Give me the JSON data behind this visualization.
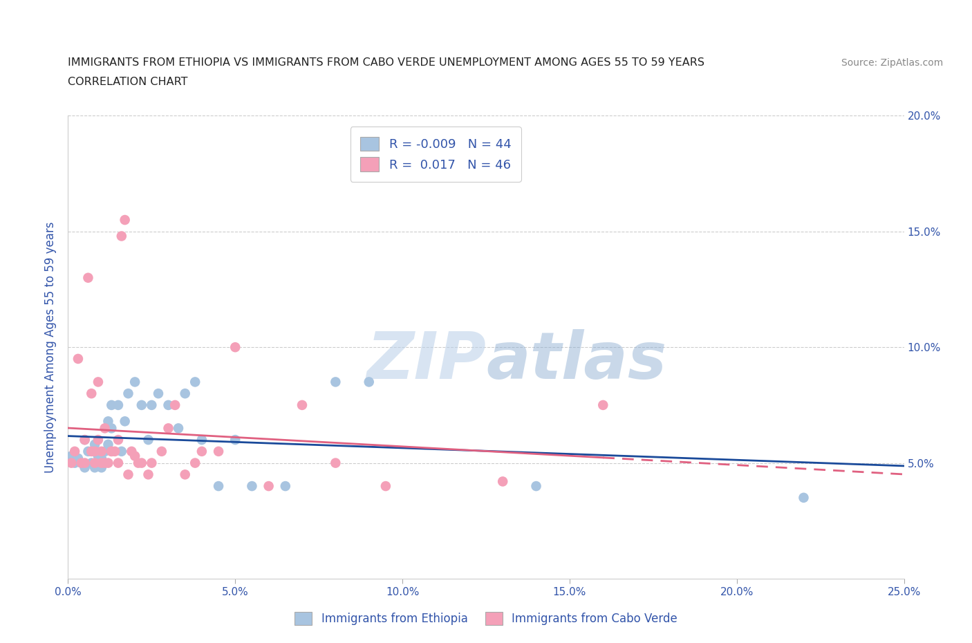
{
  "title_line1": "IMMIGRANTS FROM ETHIOPIA VS IMMIGRANTS FROM CABO VERDE UNEMPLOYMENT AMONG AGES 55 TO 59 YEARS",
  "title_line2": "CORRELATION CHART",
  "source_text": "Source: ZipAtlas.com",
  "ylabel": "Unemployment Among Ages 55 to 59 years",
  "xlim": [
    0.0,
    0.25
  ],
  "ylim": [
    0.0,
    0.2
  ],
  "xticks": [
    0.0,
    0.05,
    0.1,
    0.15,
    0.2,
    0.25
  ],
  "yticks": [
    0.0,
    0.05,
    0.1,
    0.15,
    0.2
  ],
  "watermark_zip": "ZIP",
  "watermark_atlas": "atlas",
  "legend_ethiopia_r": "-0.009",
  "legend_ethiopia_n": "44",
  "legend_caboverde_r": "0.017",
  "legend_caboverde_n": "46",
  "color_ethiopia": "#a8c4e0",
  "color_caboverde": "#f4a0b8",
  "line_color_ethiopia": "#1a4a9a",
  "line_color_caboverde": "#e06080",
  "grid_color": "#cccccc",
  "title_color": "#222222",
  "axis_label_color": "#3355aa",
  "tick_label_color": "#3355aa",
  "ethiopia_x": [
    0.001,
    0.002,
    0.003,
    0.004,
    0.005,
    0.005,
    0.006,
    0.007,
    0.007,
    0.008,
    0.008,
    0.009,
    0.009,
    0.01,
    0.01,
    0.01,
    0.011,
    0.011,
    0.012,
    0.012,
    0.013,
    0.013,
    0.015,
    0.016,
    0.017,
    0.018,
    0.02,
    0.022,
    0.024,
    0.025,
    0.027,
    0.03,
    0.033,
    0.035,
    0.038,
    0.04,
    0.045,
    0.05,
    0.055,
    0.065,
    0.08,
    0.09,
    0.14,
    0.22
  ],
  "ethiopia_y": [
    0.053,
    0.05,
    0.052,
    0.05,
    0.06,
    0.048,
    0.055,
    0.05,
    0.055,
    0.048,
    0.058,
    0.05,
    0.053,
    0.052,
    0.05,
    0.048,
    0.055,
    0.05,
    0.058,
    0.068,
    0.065,
    0.075,
    0.075,
    0.055,
    0.068,
    0.08,
    0.085,
    0.075,
    0.06,
    0.075,
    0.08,
    0.075,
    0.065,
    0.08,
    0.085,
    0.06,
    0.04,
    0.06,
    0.04,
    0.04,
    0.085,
    0.085,
    0.04,
    0.035
  ],
  "caboverde_x": [
    0.001,
    0.002,
    0.003,
    0.004,
    0.005,
    0.005,
    0.006,
    0.007,
    0.007,
    0.008,
    0.008,
    0.009,
    0.009,
    0.01,
    0.01,
    0.011,
    0.011,
    0.012,
    0.013,
    0.013,
    0.014,
    0.015,
    0.015,
    0.016,
    0.017,
    0.018,
    0.019,
    0.02,
    0.021,
    0.022,
    0.024,
    0.025,
    0.028,
    0.03,
    0.032,
    0.035,
    0.038,
    0.04,
    0.045,
    0.05,
    0.06,
    0.07,
    0.08,
    0.095,
    0.13,
    0.16
  ],
  "caboverde_y": [
    0.05,
    0.055,
    0.095,
    0.05,
    0.06,
    0.05,
    0.13,
    0.055,
    0.08,
    0.055,
    0.05,
    0.06,
    0.085,
    0.05,
    0.055,
    0.05,
    0.065,
    0.05,
    0.055,
    0.055,
    0.055,
    0.05,
    0.06,
    0.148,
    0.155,
    0.045,
    0.055,
    0.053,
    0.05,
    0.05,
    0.045,
    0.05,
    0.055,
    0.065,
    0.075,
    0.045,
    0.05,
    0.055,
    0.055,
    0.1,
    0.04,
    0.075,
    0.05,
    0.04,
    0.042,
    0.075
  ]
}
